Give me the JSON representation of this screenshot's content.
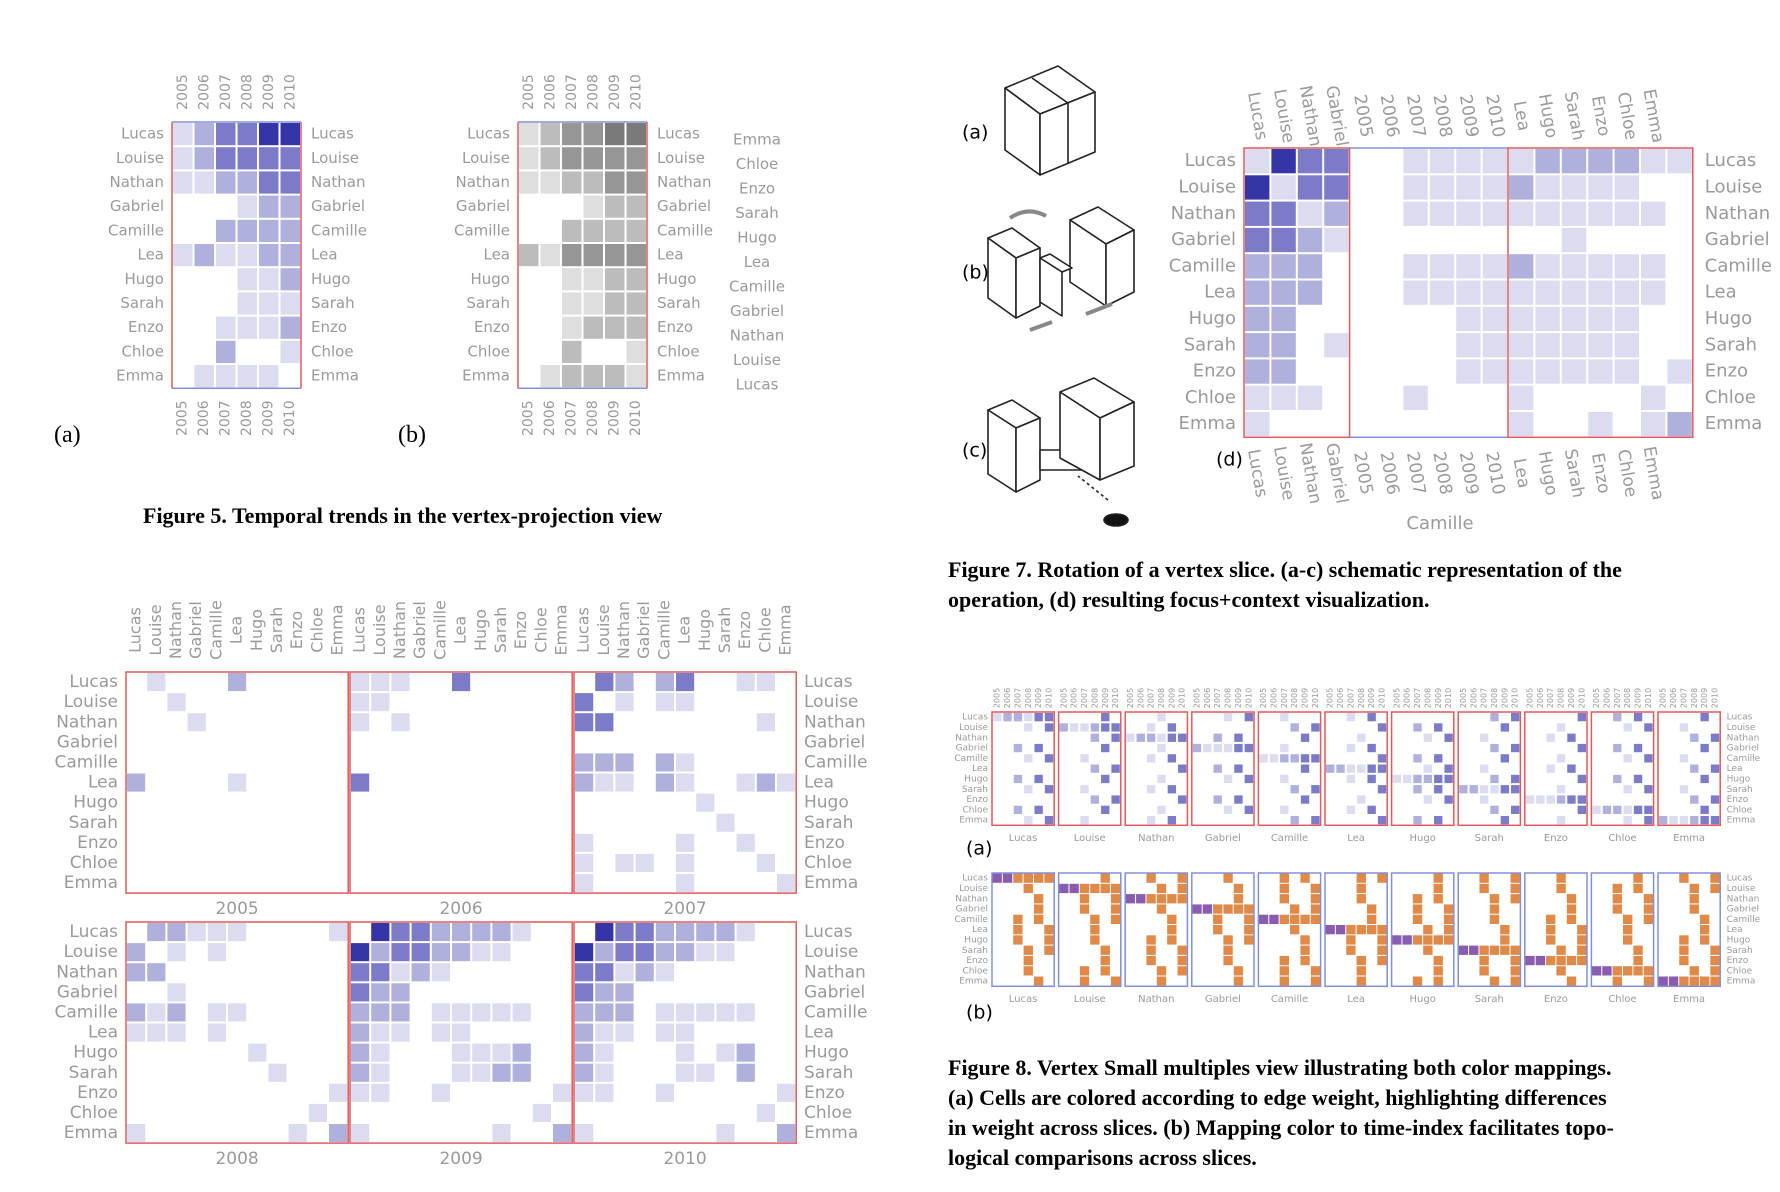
{
  "names": [
    "Lucas",
    "Louise",
    "Nathan",
    "Gabriel",
    "Camille",
    "Lea",
    "Hugo",
    "Sarah",
    "Enzo",
    "Chloe",
    "Emma"
  ],
  "years": [
    "2005",
    "2006",
    "2007",
    "2008",
    "2009",
    "2010"
  ],
  "colors": {
    "frame_red": "#e05a5a",
    "frame_blue": "#8090d8",
    "cell_blue": "#3a3aa8",
    "cell_gray": "#6e6e6e",
    "cell_orange": "#e08a4a",
    "cell_purple": "#8a5cb0",
    "label_gray": "#9a9a9a"
  },
  "fig5": {
    "caption": "Figure 5. Temporal trends in the vertex-projection view",
    "label_a": "(a)",
    "label_b": "(b)",
    "reversed_names": [
      "Emma",
      "Chloe",
      "Enzo",
      "Sarah",
      "Hugo",
      "Lea",
      "Camille",
      "Gabriel",
      "Nathan",
      "Louise",
      "Lucas"
    ],
    "matrix_a": [
      [
        1,
        2,
        3,
        3,
        4,
        4
      ],
      [
        1,
        2,
        3,
        3,
        3,
        3
      ],
      [
        1,
        1,
        2,
        2,
        3,
        3
      ],
      [
        0,
        0,
        0,
        1,
        2,
        2
      ],
      [
        0,
        0,
        2,
        2,
        2,
        2
      ],
      [
        1,
        2,
        1,
        1,
        2,
        2
      ],
      [
        0,
        0,
        0,
        1,
        1,
        2
      ],
      [
        0,
        0,
        0,
        1,
        1,
        1
      ],
      [
        0,
        0,
        1,
        1,
        1,
        2
      ],
      [
        0,
        0,
        2,
        0,
        0,
        1
      ],
      [
        0,
        1,
        1,
        1,
        1,
        0
      ]
    ],
    "matrix_b": [
      [
        1,
        2,
        3,
        3,
        4,
        4
      ],
      [
        1,
        2,
        3,
        3,
        3,
        3
      ],
      [
        1,
        1,
        2,
        2,
        3,
        3
      ],
      [
        0,
        0,
        0,
        1,
        2,
        2
      ],
      [
        0,
        0,
        2,
        2,
        2,
        2
      ],
      [
        2,
        1,
        3,
        3,
        3,
        3
      ],
      [
        0,
        0,
        1,
        1,
        2,
        2
      ],
      [
        0,
        0,
        1,
        1,
        2,
        2
      ],
      [
        0,
        0,
        1,
        2,
        2,
        2
      ],
      [
        0,
        0,
        2,
        0,
        0,
        1
      ],
      [
        0,
        1,
        2,
        2,
        2,
        1
      ]
    ]
  },
  "fig6": {
    "year_labels": [
      "2005",
      "2006",
      "2007",
      "2008",
      "2009",
      "2010"
    ],
    "matrices": [
      {
        "cells": [
          [
            0,
            1,
            1
          ],
          [
            0,
            5,
            2
          ],
          [
            1,
            2,
            1
          ],
          [
            2,
            3,
            1
          ],
          [
            5,
            0,
            2
          ],
          [
            5,
            5,
            1
          ]
        ]
      },
      {
        "cells": [
          [
            0,
            0,
            1
          ],
          [
            0,
            1,
            1
          ],
          [
            0,
            2,
            1
          ],
          [
            0,
            5,
            3
          ],
          [
            1,
            0,
            1
          ],
          [
            1,
            1,
            1
          ],
          [
            2,
            0,
            1
          ],
          [
            2,
            2,
            1
          ],
          [
            5,
            0,
            3
          ]
        ]
      },
      {
        "cells": [
          [
            0,
            1,
            3
          ],
          [
            0,
            2,
            2
          ],
          [
            0,
            4,
            2
          ],
          [
            0,
            5,
            3
          ],
          [
            0,
            8,
            1
          ],
          [
            0,
            9,
            1
          ],
          [
            1,
            0,
            3
          ],
          [
            1,
            2,
            1
          ],
          [
            1,
            4,
            1
          ],
          [
            1,
            5,
            1
          ],
          [
            2,
            0,
            3
          ],
          [
            2,
            1,
            3
          ],
          [
            2,
            9,
            1
          ],
          [
            4,
            0,
            2
          ],
          [
            4,
            1,
            2
          ],
          [
            4,
            2,
            2
          ],
          [
            4,
            4,
            2
          ],
          [
            4,
            5,
            1
          ],
          [
            5,
            0,
            2
          ],
          [
            5,
            1,
            1
          ],
          [
            5,
            2,
            1
          ],
          [
            5,
            4,
            2
          ],
          [
            5,
            5,
            1
          ],
          [
            5,
            8,
            1
          ],
          [
            5,
            9,
            2
          ],
          [
            5,
            10,
            1
          ],
          [
            6,
            6,
            1
          ],
          [
            7,
            7,
            1
          ],
          [
            8,
            0,
            1
          ],
          [
            8,
            5,
            1
          ],
          [
            8,
            8,
            1
          ],
          [
            9,
            0,
            1
          ],
          [
            9,
            2,
            1
          ],
          [
            9,
            3,
            1
          ],
          [
            9,
            5,
            1
          ],
          [
            9,
            9,
            1
          ],
          [
            10,
            0,
            1
          ],
          [
            10,
            5,
            1
          ],
          [
            10,
            10,
            1
          ]
        ]
      },
      {
        "cells": [
          [
            0,
            1,
            2
          ],
          [
            0,
            2,
            2
          ],
          [
            0,
            3,
            1
          ],
          [
            0,
            4,
            1
          ],
          [
            0,
            5,
            1
          ],
          [
            0,
            10,
            1
          ],
          [
            1,
            0,
            2
          ],
          [
            1,
            2,
            1
          ],
          [
            1,
            4,
            1
          ],
          [
            2,
            0,
            2
          ],
          [
            2,
            1,
            2
          ],
          [
            3,
            2,
            1
          ],
          [
            4,
            0,
            2
          ],
          [
            4,
            1,
            1
          ],
          [
            4,
            2,
            2
          ],
          [
            4,
            4,
            1
          ],
          [
            4,
            5,
            1
          ],
          [
            5,
            0,
            1
          ],
          [
            5,
            1,
            1
          ],
          [
            5,
            2,
            1
          ],
          [
            5,
            4,
            1
          ],
          [
            6,
            6,
            1
          ],
          [
            7,
            7,
            1
          ],
          [
            8,
            10,
            1
          ],
          [
            9,
            9,
            1
          ],
          [
            10,
            0,
            1
          ],
          [
            10,
            8,
            1
          ],
          [
            10,
            10,
            2
          ]
        ]
      },
      {
        "cells": [
          [
            0,
            1,
            4
          ],
          [
            0,
            2,
            3
          ],
          [
            0,
            3,
            3
          ],
          [
            0,
            4,
            2
          ],
          [
            0,
            5,
            2
          ],
          [
            0,
            6,
            2
          ],
          [
            0,
            7,
            2
          ],
          [
            0,
            8,
            1
          ],
          [
            1,
            0,
            4
          ],
          [
            1,
            1,
            2
          ],
          [
            1,
            2,
            3
          ],
          [
            1,
            3,
            3
          ],
          [
            1,
            4,
            2
          ],
          [
            1,
            5,
            2
          ],
          [
            1,
            6,
            1
          ],
          [
            1,
            7,
            1
          ],
          [
            2,
            0,
            3
          ],
          [
            2,
            1,
            3
          ],
          [
            2,
            2,
            1
          ],
          [
            2,
            3,
            2
          ],
          [
            2,
            4,
            1
          ],
          [
            3,
            0,
            3
          ],
          [
            3,
            1,
            2
          ],
          [
            3,
            2,
            2
          ],
          [
            4,
            0,
            2
          ],
          [
            4,
            1,
            2
          ],
          [
            4,
            2,
            2
          ],
          [
            4,
            4,
            1
          ],
          [
            4,
            5,
            1
          ],
          [
            4,
            6,
            1
          ],
          [
            4,
            7,
            1
          ],
          [
            4,
            8,
            1
          ],
          [
            5,
            0,
            2
          ],
          [
            5,
            1,
            1
          ],
          [
            5,
            2,
            1
          ],
          [
            5,
            4,
            1
          ],
          [
            5,
            5,
            1
          ],
          [
            6,
            0,
            2
          ],
          [
            6,
            1,
            1
          ],
          [
            6,
            5,
            1
          ],
          [
            6,
            6,
            1
          ],
          [
            6,
            7,
            1
          ],
          [
            6,
            8,
            2
          ],
          [
            7,
            0,
            2
          ],
          [
            7,
            1,
            1
          ],
          [
            7,
            5,
            1
          ],
          [
            7,
            6,
            1
          ],
          [
            7,
            7,
            2
          ],
          [
            7,
            8,
            2
          ],
          [
            8,
            0,
            1
          ],
          [
            8,
            1,
            1
          ],
          [
            8,
            4,
            1
          ],
          [
            8,
            10,
            1
          ],
          [
            9,
            9,
            1
          ],
          [
            10,
            0,
            1
          ],
          [
            10,
            7,
            1
          ],
          [
            10,
            10,
            2
          ]
        ]
      },
      {
        "cells": [
          [
            0,
            1,
            4
          ],
          [
            0,
            2,
            3
          ],
          [
            0,
            3,
            3
          ],
          [
            0,
            4,
            2
          ],
          [
            0,
            5,
            2
          ],
          [
            0,
            6,
            2
          ],
          [
            0,
            7,
            2
          ],
          [
            0,
            8,
            1
          ],
          [
            1,
            0,
            4
          ],
          [
            1,
            1,
            2
          ],
          [
            1,
            2,
            3
          ],
          [
            1,
            3,
            3
          ],
          [
            1,
            4,
            2
          ],
          [
            1,
            5,
            2
          ],
          [
            1,
            6,
            1
          ],
          [
            1,
            7,
            1
          ],
          [
            2,
            0,
            3
          ],
          [
            2,
            1,
            3
          ],
          [
            2,
            2,
            1
          ],
          [
            2,
            3,
            2
          ],
          [
            2,
            4,
            1
          ],
          [
            3,
            0,
            3
          ],
          [
            3,
            1,
            2
          ],
          [
            3,
            2,
            2
          ],
          [
            4,
            0,
            2
          ],
          [
            4,
            1,
            2
          ],
          [
            4,
            2,
            2
          ],
          [
            4,
            4,
            1
          ],
          [
            4,
            5,
            1
          ],
          [
            4,
            6,
            1
          ],
          [
            4,
            7,
            1
          ],
          [
            4,
            8,
            1
          ],
          [
            5,
            0,
            2
          ],
          [
            5,
            1,
            1
          ],
          [
            5,
            2,
            1
          ],
          [
            5,
            4,
            1
          ],
          [
            5,
            5,
            1
          ],
          [
            6,
            0,
            2
          ],
          [
            6,
            1,
            1
          ],
          [
            6,
            5,
            1
          ],
          [
            6,
            7,
            1
          ],
          [
            6,
            8,
            2
          ],
          [
            7,
            0,
            2
          ],
          [
            7,
            1,
            1
          ],
          [
            7,
            5,
            1
          ],
          [
            7,
            6,
            1
          ],
          [
            7,
            8,
            2
          ],
          [
            8,
            0,
            1
          ],
          [
            8,
            1,
            1
          ],
          [
            8,
            4,
            1
          ],
          [
            8,
            10,
            1
          ],
          [
            9,
            9,
            1
          ],
          [
            10,
            0,
            1
          ],
          [
            10,
            7,
            1
          ],
          [
            10,
            10,
            2
          ]
        ]
      }
    ]
  },
  "fig7": {
    "caption_line1": "Figure 7. Rotation of a vertex slice. (a-c) schematic representation of the",
    "caption_line2": "operation, (d) resulting focus+context visualization.",
    "label_a": "(a)",
    "label_b": "(b)",
    "label_c": "(c)",
    "label_d": "(d)",
    "slice_name": "Camille",
    "left_block": [
      [
        1,
        4,
        3,
        3
      ],
      [
        4,
        1,
        3,
        3
      ],
      [
        3,
        3,
        1,
        2
      ],
      [
        3,
        3,
        2,
        1
      ],
      [
        2,
        2,
        2,
        0
      ],
      [
        2,
        2,
        2,
        0
      ],
      [
        2,
        2,
        0,
        0
      ],
      [
        2,
        2,
        0,
        1
      ],
      [
        2,
        2,
        0,
        0
      ],
      [
        1,
        1,
        1,
        0
      ],
      [
        1,
        0,
        0,
        0
      ]
    ],
    "mid_block": [
      [
        0,
        0,
        1,
        1,
        1,
        1
      ],
      [
        0,
        0,
        1,
        1,
        1,
        1
      ],
      [
        0,
        0,
        1,
        1,
        1,
        1
      ],
      [
        0,
        0,
        0,
        0,
        0,
        0
      ],
      [
        0,
        0,
        1,
        1,
        1,
        1
      ],
      [
        0,
        0,
        1,
        1,
        1,
        1
      ],
      [
        0,
        0,
        0,
        0,
        1,
        1
      ],
      [
        0,
        0,
        0,
        0,
        1,
        1
      ],
      [
        0,
        0,
        0,
        0,
        1,
        1
      ],
      [
        0,
        0,
        1,
        0,
        0,
        0
      ],
      [
        0,
        0,
        0,
        0,
        0,
        0
      ]
    ],
    "right_block": [
      [
        1,
        2,
        2,
        2,
        2,
        1,
        1
      ],
      [
        2,
        1,
        1,
        1,
        1,
        0,
        0
      ],
      [
        1,
        1,
        1,
        1,
        1,
        1,
        0
      ],
      [
        0,
        0,
        1,
        0,
        0,
        0,
        0
      ],
      [
        2,
        1,
        1,
        1,
        1,
        1,
        0
      ],
      [
        1,
        1,
        1,
        1,
        1,
        1,
        0
      ],
      [
        1,
        1,
        1,
        1,
        1,
        0,
        0
      ],
      [
        1,
        1,
        1,
        1,
        1,
        0,
        0
      ],
      [
        1,
        1,
        1,
        1,
        1,
        0,
        1
      ],
      [
        1,
        0,
        0,
        0,
        0,
        1,
        0
      ],
      [
        1,
        0,
        0,
        1,
        0,
        1,
        2
      ]
    ]
  },
  "fig8": {
    "caption_line1": "Figure 8. Vertex Small multiples view illustrating both color mappings.",
    "caption_line2": "(a) Cells are colored according to edge weight, highlighting differences",
    "caption_line3": "in weight across slices. (b) Mapping color to time-index facilitates topo-",
    "caption_line4": "logical comparisons across slices.",
    "label_a": "(a)",
    "label_b": "(b)"
  }
}
